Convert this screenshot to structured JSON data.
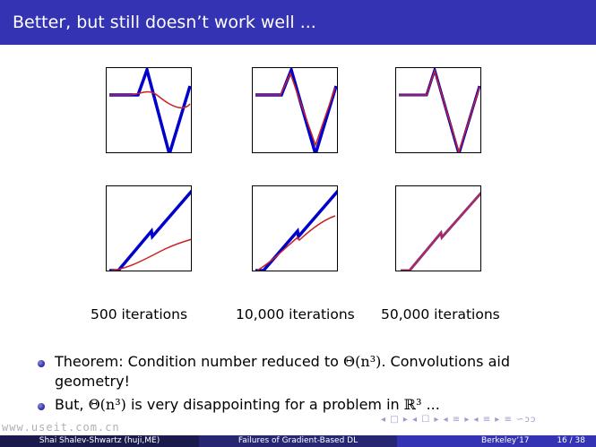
{
  "slide": {
    "title": "Better, but still doesn’t work well ...",
    "captions": [
      "500 iterations",
      "10,000 iterations",
      "50,000 iterations"
    ],
    "bullets": [
      {
        "pre": "Theorem: Condition number reduced to ",
        "math": "Θ(n³)",
        "post": ". Convolutions aid geometry!"
      },
      {
        "pre": "But, ",
        "math": "Θ(n³)",
        "mid": " is very disappointing for a problem in ",
        "math2": "ℝ³",
        "post": " ..."
      }
    ]
  },
  "footer": {
    "author": "Shai Shalev-Shwartz  (huji,ME)",
    "talk": "Failures of Gradient-Based DL",
    "venue": "Berkeley’17",
    "page": "16 / 38"
  },
  "nav": {
    "symbols": "◂ □ ▸  ◂ ☐ ▸  ◂ ≡ ▸  ◂ ≡ ▸   ≡   ∽ɔɔ"
  },
  "watermark": "www.useit.com.cn",
  "colors": {
    "title_bar": "#3333b3",
    "target_curve": "#0000cc",
    "learned_curve": "#cc2222"
  }
}
